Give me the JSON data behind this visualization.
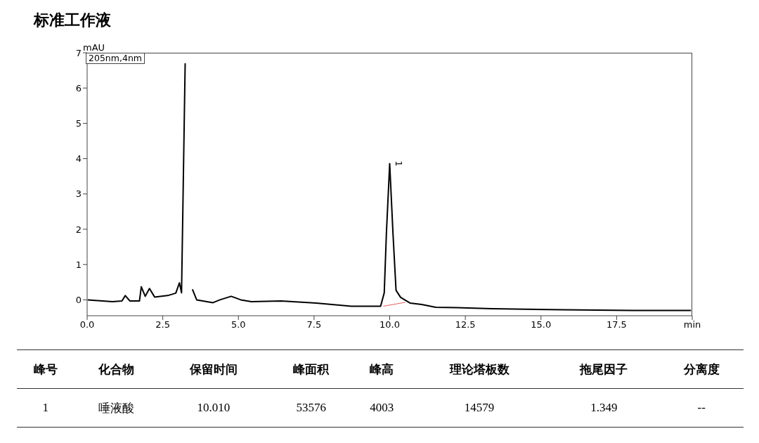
{
  "chart_data": {
    "type": "line",
    "title": "标准工作液",
    "ylabel": "mAU",
    "xlim": [
      0,
      20
    ],
    "ylim": [
      -0.45,
      7
    ],
    "xticks": [
      {
        "value": 0,
        "label": "0.0"
      },
      2.5,
      {
        "value": 5,
        "label": "5.0"
      },
      7.5,
      {
        "value": 10,
        "label": "10.0"
      },
      12.5,
      {
        "value": 15,
        "label": "15.0"
      },
      17.5,
      {
        "value": 20,
        "label": "min"
      }
    ],
    "yticks": [
      0,
      1,
      2,
      3,
      4,
      5,
      6,
      7
    ],
    "grid": false,
    "legend": false,
    "marker": "none",
    "line_style": "solid",
    "series": [
      {
        "color": "#000000",
        "x": [
          0.02,
          0.84,
          1.15,
          1.26,
          1.41,
          1.73,
          1.79,
          1.92,
          2.06,
          2.23,
          2.7,
          2.93,
          3.05,
          3.12,
          3.24,
          3.3,
          3.37,
          3.48,
          3.62,
          4.16,
          4.39,
          4.76,
          5.08,
          5.43,
          6.41,
          7.57,
          8.73,
          9.7,
          9.82,
          9.89,
          10.0,
          10.11,
          10.21,
          10.36,
          10.67,
          11.06,
          11.52,
          12.22,
          13.38,
          15.7,
          18.02,
          19.96
        ],
        "values": [
          0,
          -0.05,
          -0.03,
          0.12,
          -0.03,
          -0.03,
          0.37,
          0.1,
          0.32,
          0.08,
          0.13,
          0.19,
          0.48,
          0.2,
          6.7,
          null,
          null,
          0.3,
          0,
          -0.08,
          0,
          0.1,
          0,
          -0.05,
          -0.03,
          -0.09,
          -0.18,
          -0.18,
          0.2,
          1.86,
          3.86,
          1.86,
          0.27,
          0.07,
          -0.09,
          -0.13,
          -0.21,
          -0.22,
          -0.25,
          -0.28,
          -0.3,
          -0.3
        ]
      },
      {
        "color": "#e06060",
        "x": [
          9.79,
          10.52
        ],
        "values": [
          -0.18,
          -0.07
        ]
      }
    ],
    "annotations": [
      "205nm,4nm",
      {
        "text": "1",
        "x": 10.01,
        "y": 3.86
      },
      "峰号",
      "化合物",
      "保留时间",
      "峰面积",
      "峰高",
      "理论塔板数",
      "拖尾因子",
      "分离度",
      "1",
      "唾液酸",
      "10.010",
      "53576",
      "4003",
      "14579",
      "1.349",
      "--"
    ]
  }
}
